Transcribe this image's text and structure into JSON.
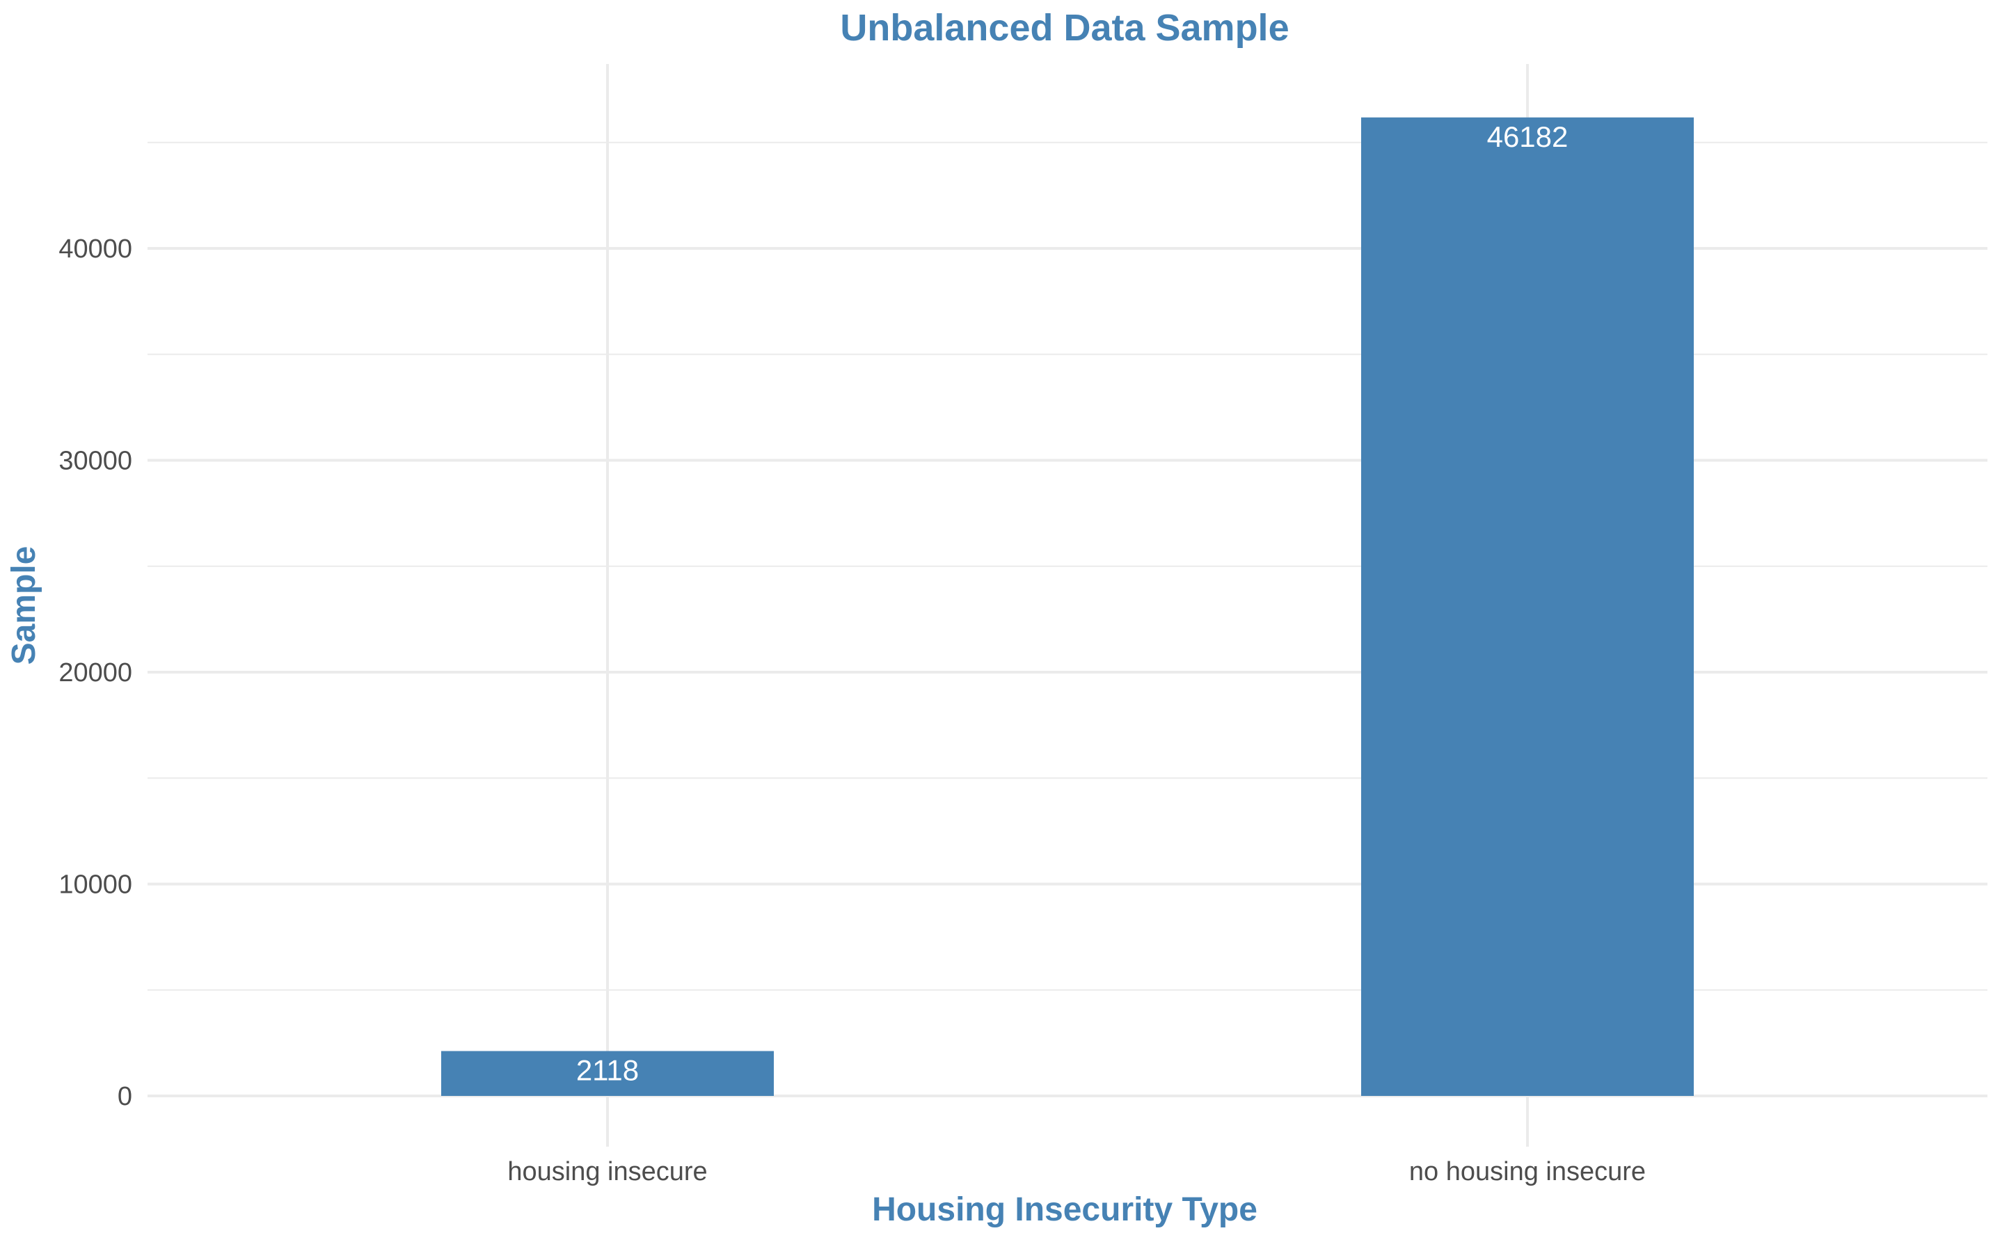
{
  "chart_data": {
    "type": "bar",
    "title": "Unbalanced Data Sample",
    "xlabel": "Housing Insecurity Type",
    "ylabel": "Sample",
    "categories": [
      "housing insecure",
      "no housing insecure"
    ],
    "values": [
      2118,
      46182
    ],
    "data_labels": [
      "2118",
      "46182"
    ],
    "y_ticks": [
      0,
      10000,
      20000,
      30000,
      40000
    ],
    "y_tick_labels": [
      "0",
      "10000",
      "20000",
      "30000",
      "40000"
    ],
    "ylim": [
      0,
      49500
    ],
    "grid": true,
    "legend": "none",
    "colors": {
      "bar": "#4682b4",
      "title": "#4682b4",
      "axis_title": "#4682b4",
      "grid": "#ebebeb",
      "data_label": "#ffffff"
    }
  }
}
